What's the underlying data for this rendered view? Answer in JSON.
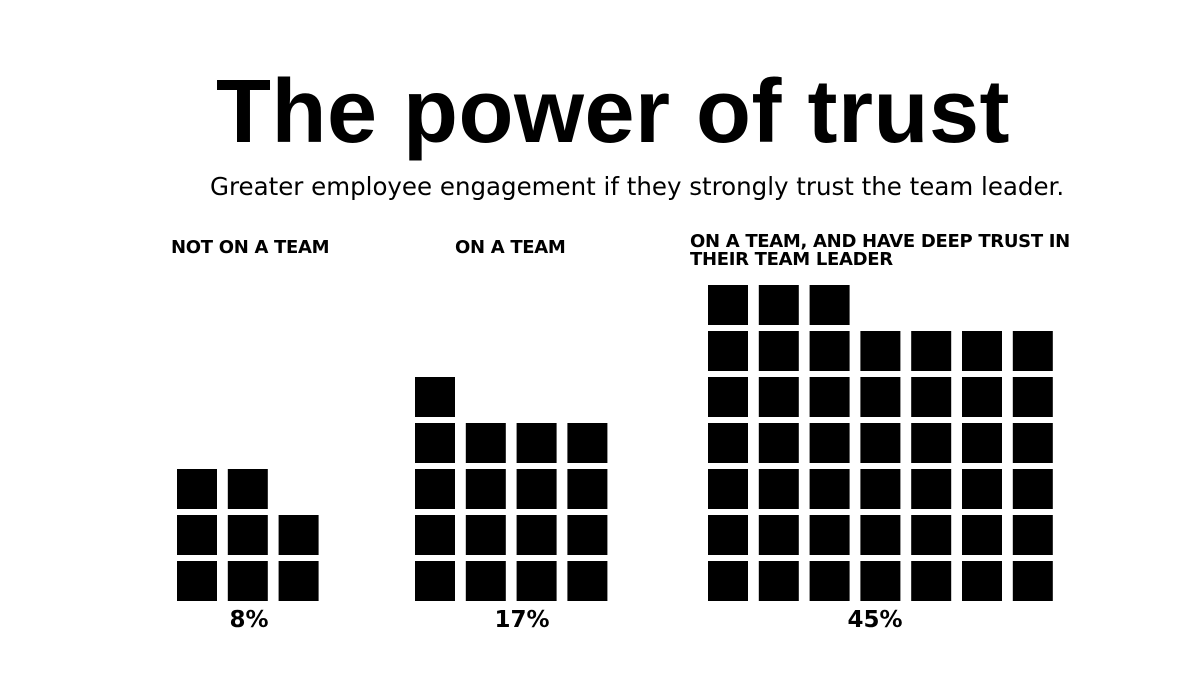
{
  "title": "The power of trust",
  "subtitle": "Greater employee engagement if they strongly trust the team leader.",
  "chart_data": {
    "type": "bar",
    "style": "unit-square pictograph",
    "color": "#000000",
    "categories": [
      "NOT ON A TEAM",
      "ON A TEAM",
      "ON A TEAM, AND HAVE DEEP TRUST IN THEIR TEAM LEADER"
    ],
    "values": [
      8,
      17,
      45
    ],
    "value_labels": [
      "8%",
      "17%",
      "45%"
    ],
    "unit_squares": [
      8,
      17,
      45
    ],
    "columns_per_group": [
      3,
      4,
      7
    ]
  }
}
